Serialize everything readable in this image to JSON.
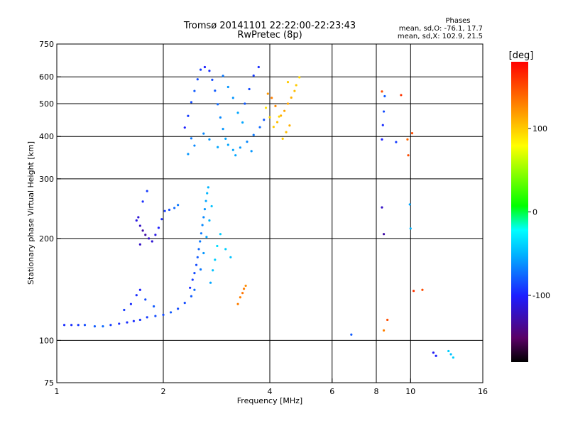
{
  "chart_data": {
    "type": "scatter",
    "title": "Tromsø 20141101 22:22:00-22:23:43",
    "subtitle": "RwPretec (8p)",
    "xlabel": "Frequency [MHz]",
    "ylabel": "Stationary phase Virtual Height [km]",
    "x_scale": "log",
    "y_scale": "log",
    "xlim": [
      1,
      16
    ],
    "ylim": [
      75,
      750
    ],
    "x_ticks": [
      1,
      2,
      4,
      6,
      8,
      10,
      16
    ],
    "x_tick_labels": [
      "1",
      "2",
      "4",
      "6",
      "8",
      "10",
      "16"
    ],
    "x_grid": [
      2,
      4,
      6,
      8,
      10
    ],
    "y_ticks": [
      75,
      100,
      200,
      300,
      400,
      500,
      600,
      750
    ],
    "y_tick_labels": [
      "75",
      "100",
      "200",
      "300",
      "400",
      "500",
      "600",
      "750"
    ],
    "y_grid": [
      100,
      200,
      300,
      400,
      500,
      600
    ],
    "grid": true,
    "phases_box": {
      "title": "Phases",
      "line_o": "mean, sd,O: -76.1, 17.7",
      "line_x": "mean, sd,X: 102.9, 21.5"
    },
    "colorbar": {
      "unit_label": "[deg]",
      "range": [
        -180,
        180
      ],
      "ticks": [
        100,
        0,
        -100
      ],
      "tick_labels": [
        "100",
        "0",
        "-100"
      ]
    },
    "series": [
      {
        "points": [
          [
            1.05,
            111,
            -95
          ],
          [
            1.1,
            111,
            -95
          ],
          [
            1.15,
            111,
            -92
          ],
          [
            1.2,
            111,
            -85
          ],
          [
            1.28,
            110,
            -80
          ],
          [
            1.35,
            110,
            -75
          ],
          [
            1.42,
            111,
            -90
          ],
          [
            1.5,
            112,
            -95
          ],
          [
            1.58,
            113,
            -95
          ],
          [
            1.65,
            114,
            -95
          ],
          [
            1.72,
            115,
            -92
          ],
          [
            1.8,
            117,
            -90
          ],
          [
            1.9,
            118,
            -85
          ],
          [
            2.0,
            119,
            -85
          ],
          [
            2.1,
            121,
            -80
          ],
          [
            2.2,
            124,
            -85
          ],
          [
            2.3,
            129,
            -85
          ],
          [
            2.4,
            135,
            -80
          ],
          [
            2.45,
            141,
            -75
          ],
          [
            1.55,
            123,
            -90
          ],
          [
            1.62,
            128,
            -95
          ],
          [
            1.68,
            136,
            -95
          ],
          [
            1.72,
            141,
            -100
          ],
          [
            1.78,
            132,
            -85
          ],
          [
            1.88,
            126,
            -80
          ]
        ]
      },
      {
        "points": [
          [
            2.38,
            143,
            -95
          ],
          [
            2.42,
            151,
            -90
          ],
          [
            2.45,
            158,
            -85
          ],
          [
            2.48,
            167,
            -85
          ],
          [
            2.5,
            176,
            -80
          ],
          [
            2.52,
            186,
            -75
          ],
          [
            2.54,
            196,
            -70
          ],
          [
            2.56,
            207,
            -70
          ],
          [
            2.58,
            219,
            -65
          ],
          [
            2.6,
            231,
            -65
          ],
          [
            2.62,
            244,
            -60
          ],
          [
            2.64,
            258,
            -55
          ],
          [
            2.66,
            272,
            -50
          ],
          [
            2.68,
            283,
            -50
          ],
          [
            2.72,
            148,
            -55
          ],
          [
            2.76,
            161,
            -45
          ],
          [
            2.8,
            173,
            -40
          ],
          [
            2.84,
            190,
            -35
          ],
          [
            2.9,
            206,
            -40
          ],
          [
            3.0,
            186,
            -40
          ],
          [
            3.1,
            176,
            -45
          ],
          [
            2.55,
            162,
            -70
          ],
          [
            2.6,
            181,
            -60
          ],
          [
            2.65,
            202,
            -55
          ],
          [
            2.7,
            226,
            -50
          ],
          [
            2.74,
            249,
            -45
          ]
        ]
      },
      {
        "points": [
          [
            1.68,
            226,
            -110
          ],
          [
            1.72,
            218,
            -120
          ],
          [
            1.75,
            211,
            -130
          ],
          [
            1.78,
            205,
            -130
          ],
          [
            1.82,
            200,
            -120
          ],
          [
            1.86,
            196,
            -115
          ],
          [
            1.9,
            205,
            -110
          ],
          [
            1.94,
            215,
            -100
          ],
          [
            1.98,
            228,
            -95
          ],
          [
            2.02,
            241,
            -90
          ],
          [
            2.08,
            243,
            -85
          ],
          [
            2.15,
            246,
            -75
          ],
          [
            2.2,
            251,
            -70
          ],
          [
            1.75,
            257,
            -95
          ],
          [
            1.8,
            276,
            -90
          ],
          [
            1.7,
            231,
            -115
          ],
          [
            1.72,
            192,
            -120
          ]
        ]
      },
      {
        "points": [
          [
            2.3,
            425,
            -100
          ],
          [
            2.35,
            460,
            -90
          ],
          [
            2.4,
            505,
            -85
          ],
          [
            2.45,
            545,
            -80
          ],
          [
            2.5,
            590,
            -85
          ],
          [
            2.55,
            630,
            -90
          ],
          [
            2.62,
            641,
            -100
          ],
          [
            2.7,
            625,
            -95
          ],
          [
            2.75,
            588,
            -85
          ],
          [
            2.8,
            546,
            -80
          ],
          [
            2.85,
            498,
            -75
          ],
          [
            2.9,
            455,
            -65
          ],
          [
            2.95,
            421,
            -60
          ],
          [
            3.0,
            394,
            -55
          ],
          [
            3.05,
            378,
            -55
          ],
          [
            3.15,
            365,
            -55
          ],
          [
            3.3,
            371,
            -60
          ],
          [
            3.45,
            386,
            -65
          ],
          [
            3.6,
            404,
            -70
          ],
          [
            3.75,
            426,
            -75
          ],
          [
            3.85,
            448,
            -80
          ],
          [
            3.4,
            500,
            -80
          ],
          [
            3.5,
            552,
            -85
          ],
          [
            3.6,
            605,
            -90
          ],
          [
            3.72,
            641,
            -95
          ],
          [
            2.95,
            604,
            -70
          ],
          [
            3.05,
            560,
            -60
          ],
          [
            3.15,
            520,
            -60
          ],
          [
            3.25,
            470,
            -55
          ],
          [
            3.35,
            440,
            -55
          ],
          [
            2.4,
            395,
            -70
          ],
          [
            2.45,
            376,
            -65
          ],
          [
            2.35,
            355,
            -60
          ],
          [
            2.6,
            408,
            -65
          ],
          [
            2.7,
            392,
            -60
          ],
          [
            2.85,
            372,
            -55
          ],
          [
            3.2,
            352,
            -55
          ],
          [
            3.55,
            362,
            -60
          ]
        ]
      },
      {
        "points": [
          [
            3.9,
            486,
            90
          ],
          [
            4.0,
            456,
            95
          ],
          [
            4.1,
            427,
            100
          ],
          [
            4.2,
            441,
            105
          ],
          [
            4.3,
            461,
            110
          ],
          [
            4.4,
            476,
            115
          ],
          [
            4.5,
            500,
            115
          ],
          [
            4.6,
            521,
            110
          ],
          [
            4.7,
            545,
            105
          ],
          [
            4.75,
            567,
            100
          ],
          [
            4.55,
            431,
            110
          ],
          [
            4.45,
            412,
            105
          ],
          [
            4.35,
            394,
            100
          ],
          [
            4.25,
            458,
            95
          ],
          [
            4.5,
            579,
            100
          ],
          [
            4.85,
            598,
            95
          ],
          [
            3.25,
            128,
            130
          ],
          [
            3.3,
            134,
            130
          ],
          [
            3.35,
            138,
            135
          ],
          [
            3.38,
            142,
            130
          ],
          [
            3.42,
            145,
            125
          ],
          [
            4.05,
            520,
            130
          ],
          [
            4.15,
            492,
            125
          ],
          [
            3.95,
            535,
            120
          ]
        ]
      },
      {
        "points": [
          [
            8.3,
            392,
            -100
          ],
          [
            8.35,
            432,
            -95
          ],
          [
            8.4,
            474,
            -85
          ],
          [
            8.45,
            526,
            -80
          ],
          [
            8.3,
            247,
            -120
          ],
          [
            8.4,
            206,
            -130
          ],
          [
            9.8,
            392,
            140
          ],
          [
            9.85,
            352,
            150
          ],
          [
            10.0,
            214,
            -50
          ],
          [
            9.95,
            252,
            -55
          ],
          [
            10.1,
            409,
            150
          ],
          [
            11.6,
            92,
            -105
          ],
          [
            11.8,
            90,
            -100
          ],
          [
            12.8,
            93,
            -40
          ],
          [
            13.0,
            91,
            -45
          ],
          [
            13.2,
            89,
            -40
          ],
          [
            10.8,
            141,
            150
          ],
          [
            10.2,
            140,
            160
          ],
          [
            8.4,
            107,
            130
          ],
          [
            8.6,
            115,
            150
          ],
          [
            6.8,
            104,
            -80
          ],
          [
            8.3,
            543,
            150
          ],
          [
            9.1,
            385,
            -90
          ],
          [
            9.4,
            530,
            160
          ]
        ]
      }
    ]
  }
}
